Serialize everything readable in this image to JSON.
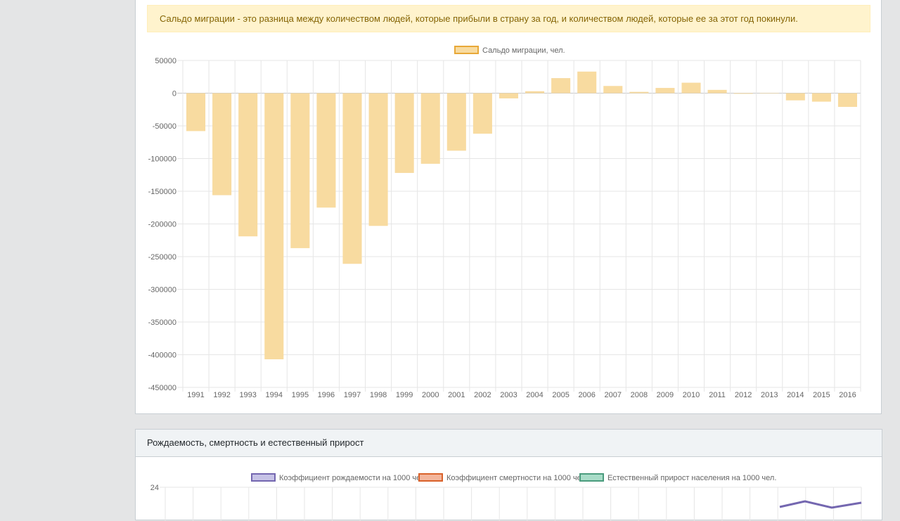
{
  "migration_card": {
    "alert_text": "Сальдо миграции - это разница между количеством людей, которые прибыли в страну за год, и количеством людей, которые ее за этот год покинули."
  },
  "births_card": {
    "title": "Рождаемость, смертность и естественный прирост"
  },
  "chart_data": [
    {
      "type": "bar",
      "legend": [
        "Сальдо миграции, чел."
      ],
      "legend_position": "top",
      "grid": true,
      "categories": [
        "1991",
        "1992",
        "1993",
        "1994",
        "1995",
        "1996",
        "1997",
        "1998",
        "1999",
        "2000",
        "2001",
        "2002",
        "2003",
        "2004",
        "2005",
        "2006",
        "2007",
        "2008",
        "2009",
        "2010",
        "2011",
        "2012",
        "2013",
        "2014",
        "2015",
        "2016"
      ],
      "series": [
        {
          "name": "Сальдо миграции, чел.",
          "values": [
            -58000,
            -156000,
            -219000,
            -407000,
            -237000,
            -175000,
            -261000,
            -203000,
            -122000,
            -108000,
            -88000,
            -62000,
            -8000,
            3000,
            23000,
            33000,
            11000,
            2000,
            8000,
            16000,
            5000,
            -1000,
            0,
            -11000,
            -13000,
            -21000
          ],
          "fill": "#f8dba0",
          "stroke": "#e8a838"
        }
      ],
      "y_ticks": [
        50000,
        0,
        -50000,
        -100000,
        -150000,
        -200000,
        -250000,
        -300000,
        -350000,
        -400000,
        -450000
      ],
      "ylim": [
        -450000,
        50000
      ]
    },
    {
      "type": "line",
      "legend": [
        "Коэффициент рождаемости на 1000 чел.",
        "Коэффициент смертности на 1000 чел.",
        "Естественный прирост населения на 1000 чел."
      ],
      "legend_position": "top",
      "grid": true,
      "series_colors": [
        {
          "fill": "#c6c2e6",
          "stroke": "#7467b0"
        },
        {
          "fill": "#f3b59b",
          "stroke": "#d9622b"
        },
        {
          "fill": "#a8dcc8",
          "stroke": "#4b9c7e"
        }
      ],
      "y_ticks_visible": [
        24
      ]
    }
  ]
}
